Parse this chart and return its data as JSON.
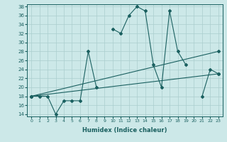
{
  "xlabel": "Humidex (Indice chaleur)",
  "x_values": [
    0,
    1,
    2,
    3,
    4,
    5,
    6,
    7,
    8,
    9,
    10,
    11,
    12,
    13,
    14,
    15,
    16,
    17,
    18,
    19,
    20,
    21,
    22,
    23
  ],
  "main_line": [
    18,
    18,
    18,
    14,
    17,
    17,
    17,
    28,
    20,
    null,
    33,
    32,
    36,
    38,
    37,
    25,
    20,
    37,
    28,
    25,
    null,
    18,
    24,
    23
  ],
  "upper_line_x": [
    0,
    23
  ],
  "upper_line_y": [
    18,
    28
  ],
  "lower_line_x": [
    0,
    23
  ],
  "lower_line_y": [
    18,
    23
  ],
  "bg_color": "#cce8e8",
  "grid_color": "#aacece",
  "line_color": "#1a6060",
  "ylim": [
    14,
    38
  ],
  "xlim": [
    -0.5,
    23.5
  ],
  "yticks": [
    14,
    16,
    18,
    20,
    22,
    24,
    26,
    28,
    30,
    32,
    34,
    36,
    38
  ],
  "xticks": [
    0,
    1,
    2,
    3,
    4,
    5,
    6,
    7,
    8,
    9,
    10,
    11,
    12,
    13,
    14,
    15,
    16,
    17,
    18,
    19,
    20,
    21,
    22,
    23
  ]
}
